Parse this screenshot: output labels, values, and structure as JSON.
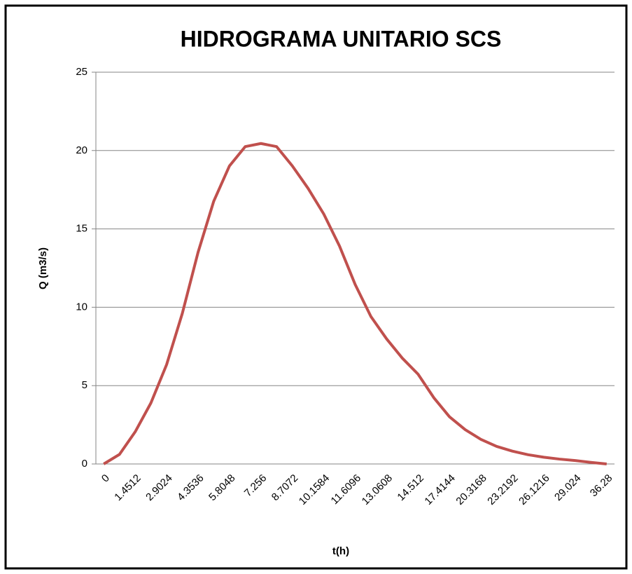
{
  "chart_data": {
    "type": "line",
    "title": "HIDROGRAMA UNITARIO SCS",
    "x_label": "t(h)",
    "y_label": "Q (m3/s)",
    "categories": [
      "0",
      null,
      "1.4512",
      null,
      "2.9024",
      null,
      "4.3536",
      null,
      "5.8048",
      null,
      "7.256",
      null,
      "8.7072",
      null,
      "10.1584",
      null,
      "11.6096",
      null,
      "13.0608",
      null,
      "14.512",
      null,
      "17.4144",
      null,
      "20.3168",
      null,
      "23.2192",
      null,
      "26.1216",
      null,
      "29.024",
      null,
      "36.28"
    ],
    "series": [
      {
        "name": "Q",
        "color": "#c0504d",
        "values": [
          0,
          0.61,
          2.05,
          3.89,
          6.34,
          9.61,
          13.5,
          16.77,
          19.02,
          20.25,
          20.45,
          20.25,
          19.02,
          17.59,
          15.95,
          13.91,
          11.45,
          9.41,
          7.98,
          6.75,
          5.73,
          4.23,
          3.01,
          2.19,
          1.57,
          1.12,
          0.82,
          0.59,
          0.43,
          0.31,
          0.22,
          0.1,
          0
        ]
      }
    ],
    "ylim": [
      0,
      25
    ],
    "yticks": [
      0,
      5,
      10,
      15,
      20,
      25
    ],
    "grid": true
  }
}
